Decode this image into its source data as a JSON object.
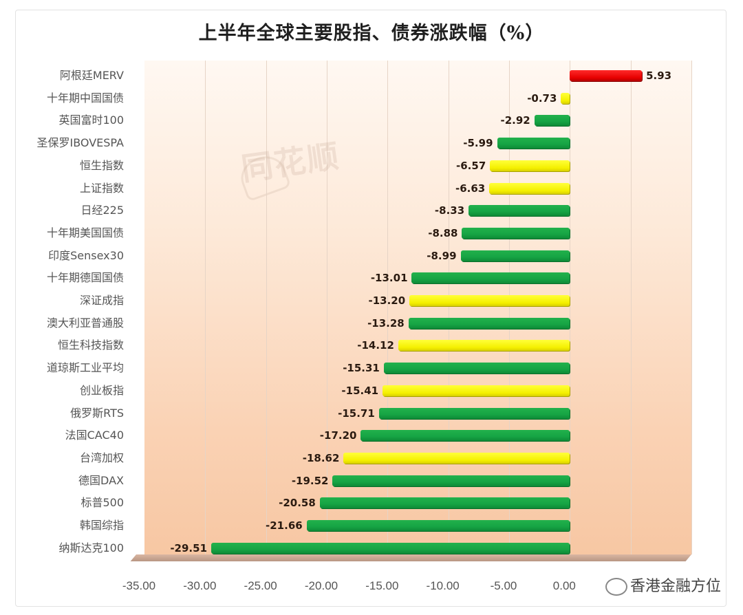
{
  "title": "上半年全球主要股指、债券涨跌幅（%）",
  "watermark": "同花顺",
  "source_label": "香港金融方位",
  "colors": {
    "green": "#16a444",
    "yellow": "#f5f000",
    "red": "#e60000",
    "background_top": "#fff8f2",
    "background_bottom": "#f7c7a3"
  },
  "chart_data": {
    "type": "bar",
    "orientation": "horizontal",
    "title": "上半年全球主要股指、债券涨跌幅（%）",
    "xlabel": "",
    "ylabel": "",
    "xlim": [
      -35,
      10
    ],
    "x_ticks": [
      "-35.00",
      "-30.00",
      "-25.00",
      "-20.00",
      "-15.00",
      "-10.00",
      "-5.00",
      "0.00"
    ],
    "grid": true,
    "legend": null,
    "categories": [
      "阿根廷MERV",
      "十年期中国国债",
      "英国富时100",
      "圣保罗IBOVESPA",
      "恒生指数",
      "上证指数",
      "日经225",
      "十年期美国国债",
      "印度Sensex30",
      "十年期德国国债",
      "深证成指",
      "澳大利亚普通股",
      "恒生科技指数",
      "道琼斯工业平均",
      "创业板指",
      "俄罗斯RTS",
      "法国CAC40",
      "台湾加权",
      "德国DAX",
      "标普500",
      "韩国综指",
      "纳斯达克100"
    ],
    "values": [
      5.93,
      -0.73,
      -2.92,
      -5.99,
      -6.57,
      -6.63,
      -8.33,
      -8.88,
      -8.99,
      -13.01,
      -13.2,
      -13.28,
      -14.12,
      -15.31,
      -15.41,
      -15.71,
      -17.2,
      -18.62,
      -19.52,
      -20.58,
      -21.66,
      -29.51
    ],
    "labels": [
      "5.93",
      "-0.73",
      "-2.92",
      "-5.99",
      "-6.57",
      "-6.63",
      "-8.33",
      "-8.88",
      "-8.99",
      "-13.01",
      "-13.20",
      "-13.28",
      "-14.12",
      "-15.31",
      "-15.41",
      "-15.71",
      "-17.20",
      "-18.62",
      "-19.52",
      "-20.58",
      "-21.66",
      "-29.51"
    ],
    "bar_colors": [
      "red",
      "yellow",
      "green",
      "green",
      "yellow",
      "yellow",
      "green",
      "green",
      "green",
      "green",
      "yellow",
      "green",
      "yellow",
      "green",
      "yellow",
      "green",
      "green",
      "yellow",
      "green",
      "green",
      "green",
      "green"
    ]
  }
}
